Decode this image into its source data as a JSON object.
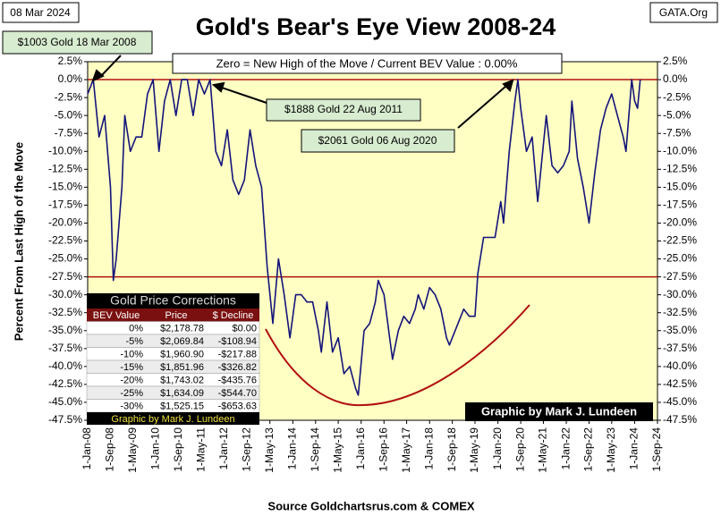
{
  "chart_data": {
    "type": "line",
    "title": "Gold's Bear's Eye View 2008-24",
    "date_label": "08 Mar 2024",
    "source_tag": "GATA.Org",
    "ylabel": "Percent  From Last High of the Move",
    "xlabel": "Source Goldchartsrus.com & COMEX",
    "credit": "Graphic by Mark J. Lundeen",
    "annotations": [
      "$1003 Gold 18 Mar 2008",
      "$1888 Gold 22 Aug 2011",
      "$2061 Gold 06 Aug 2020",
      "Zero = New High of the Move / Current  BEV Value : 0.00%"
    ],
    "reference_lines": [
      0,
      -27.5
    ],
    "reference_color": "#b01010",
    "background": "#ffffc4",
    "x": [
      "2008-01-01",
      "2008-03-01",
      "2008-05-01",
      "2008-07-01",
      "2008-09-01",
      "2008-10-01",
      "2008-11-01",
      "2009-01-01",
      "2009-02-01",
      "2009-04-01",
      "2009-06-01",
      "2009-08-01",
      "2009-10-01",
      "2009-12-01",
      "2010-02-01",
      "2010-04-01",
      "2010-06-01",
      "2010-08-01",
      "2010-10-01",
      "2010-12-01",
      "2011-02-01",
      "2011-04-01",
      "2011-06-01",
      "2011-08-01",
      "2011-10-01",
      "2011-12-01",
      "2012-02-01",
      "2012-04-01",
      "2012-06-01",
      "2012-08-01",
      "2012-10-01",
      "2012-12-01",
      "2013-02-01",
      "2013-04-01",
      "2013-06-01",
      "2013-08-01",
      "2013-10-01",
      "2013-12-01",
      "2014-02-01",
      "2014-04-01",
      "2014-06-01",
      "2014-08-01",
      "2014-10-01",
      "2014-11-01",
      "2015-01-01",
      "2015-03-01",
      "2015-05-01",
      "2015-07-01",
      "2015-09-01",
      "2015-11-01",
      "2015-12-01",
      "2016-02-01",
      "2016-04-01",
      "2016-06-01",
      "2016-07-01",
      "2016-09-01",
      "2016-11-01",
      "2016-12-01",
      "2017-02-01",
      "2017-04-01",
      "2017-06-01",
      "2017-08-01",
      "2017-09-01",
      "2017-11-01",
      "2018-01-01",
      "2018-03-01",
      "2018-05-01",
      "2018-07-01",
      "2018-08-01",
      "2018-10-01",
      "2019-01-01",
      "2019-03-01",
      "2019-05-01",
      "2019-06-01",
      "2019-08-01",
      "2019-10-01",
      "2019-12-01",
      "2020-02-01",
      "2020-03-01",
      "2020-05-01",
      "2020-07-01",
      "2020-08-01",
      "2020-09-01",
      "2020-11-01",
      "2021-01-01",
      "2021-03-01",
      "2021-05-01",
      "2021-06-01",
      "2021-08-01",
      "2021-10-01",
      "2021-12-01",
      "2022-02-01",
      "2022-03-01",
      "2022-05-01",
      "2022-07-01",
      "2022-09-01",
      "2022-11-01",
      "2023-01-01",
      "2023-03-01",
      "2023-05-01",
      "2023-07-01",
      "2023-09-01",
      "2023-10-01",
      "2023-12-01",
      "2024-01-01",
      "2024-02-01",
      "2024-03-01"
    ],
    "series": [
      {
        "name": "BEV",
        "color": "#14147a",
        "values": [
          -2,
          0,
          -8,
          -5,
          -15,
          -28,
          -25,
          -15,
          -5,
          -10,
          -8,
          -8,
          -2,
          0,
          -10,
          -3,
          0,
          -5,
          0,
          0,
          -5,
          0,
          -2,
          0,
          -10,
          -12,
          -7,
          -14,
          -16,
          -14,
          -7,
          -12,
          -15,
          -26,
          -34,
          -25,
          -30,
          -36,
          -30,
          -30,
          -31,
          -31,
          -35,
          -38,
          -31,
          -38,
          -36,
          -41,
          -40,
          -43,
          -44,
          -35,
          -34,
          -31,
          -28,
          -30,
          -36,
          -39,
          -35,
          -33,
          -34,
          -32,
          -30,
          -32,
          -29,
          -30,
          -32,
          -36,
          -37,
          -35,
          -32,
          -33,
          -33,
          -27,
          -22,
          -22,
          -22,
          -17,
          -20,
          -10,
          -3,
          0,
          -4,
          -10,
          -8,
          -17,
          -9,
          -5,
          -12,
          -13,
          -12,
          -10,
          -3,
          -11,
          -15,
          -20,
          -13,
          -7,
          -4,
          -2,
          -5,
          -8,
          -10,
          0,
          -3,
          -4,
          0
        ]
      }
    ],
    "xlim": [
      "2008-01-01",
      "2024-09-01"
    ],
    "xticks": [
      {
        "value": "2008-01-01",
        "label": "1-Jan-08"
      },
      {
        "value": "2008-09-01",
        "label": "1-Sep-08"
      },
      {
        "value": "2009-05-01",
        "label": "1-May-09"
      },
      {
        "value": "2010-01-01",
        "label": "1-Jan-10"
      },
      {
        "value": "2010-09-01",
        "label": "1-Sep-10"
      },
      {
        "value": "2011-05-01",
        "label": "1-May-11"
      },
      {
        "value": "2012-01-01",
        "label": "1-Jan-12"
      },
      {
        "value": "2012-09-01",
        "label": "1-Sep-12"
      },
      {
        "value": "2013-05-01",
        "label": "1-May-13"
      },
      {
        "value": "2014-01-01",
        "label": "1-Jan-14"
      },
      {
        "value": "2014-09-01",
        "label": "1-Sep-14"
      },
      {
        "value": "2015-05-01",
        "label": "1-May-15"
      },
      {
        "value": "2016-01-01",
        "label": "1-Jan-16"
      },
      {
        "value": "2016-09-01",
        "label": "1-Sep-16"
      },
      {
        "value": "2017-05-01",
        "label": "1-May-17"
      },
      {
        "value": "2018-01-01",
        "label": "1-Jan-18"
      },
      {
        "value": "2018-09-01",
        "label": "1-Sep-18"
      },
      {
        "value": "2019-05-01",
        "label": "1-May-19"
      },
      {
        "value": "2020-01-01",
        "label": "1-Jan-20"
      },
      {
        "value": "2020-09-01",
        "label": "1-Sep-20"
      },
      {
        "value": "2021-05-01",
        "label": "1-May-21"
      },
      {
        "value": "2022-01-01",
        "label": "1-Jan-22"
      },
      {
        "value": "2022-09-01",
        "label": "1-Sep-22"
      },
      {
        "value": "2023-05-01",
        "label": "1-May-23"
      },
      {
        "value": "2024-01-01",
        "label": "1-Jan-24"
      },
      {
        "value": "2024-09-01",
        "label": "1-Sep-24"
      }
    ],
    "ylim": [
      -47.5,
      2.5
    ],
    "yticks": [
      {
        "value": 2.5,
        "label": "2.5%"
      },
      {
        "value": 0,
        "label": "0.0%"
      },
      {
        "value": -2.5,
        "label": "-2.5%"
      },
      {
        "value": -5,
        "label": "-5.0%"
      },
      {
        "value": -7.5,
        "label": "-7.5%"
      },
      {
        "value": -10,
        "label": "-10.0%"
      },
      {
        "value": -12.5,
        "label": "-12.5%"
      },
      {
        "value": -15,
        "label": "-15.0%"
      },
      {
        "value": -17.5,
        "label": "-17.5%"
      },
      {
        "value": -20,
        "label": "-20.0%"
      },
      {
        "value": -22.5,
        "label": "-22.5%"
      },
      {
        "value": -25,
        "label": "-25.0%"
      },
      {
        "value": -27.5,
        "label": "-27.5%"
      },
      {
        "value": -30,
        "label": "-30.0%"
      },
      {
        "value": -32.5,
        "label": "-32.5%"
      },
      {
        "value": -35,
        "label": "-35.0%"
      },
      {
        "value": -37.5,
        "label": "-37.5%"
      },
      {
        "value": -40,
        "label": "-40.0%"
      },
      {
        "value": -42.5,
        "label": "-42.5%"
      },
      {
        "value": -45,
        "label": "-45.0%"
      },
      {
        "value": -47.5,
        "label": "-47.5%"
      }
    ],
    "inset_table": {
      "title": "Gold Price Corrections",
      "columns": [
        "BEV Value",
        "Price",
        "$ Decline"
      ],
      "rows": [
        [
          "0%",
          "$2,178.78",
          "$0.00"
        ],
        [
          "-5%",
          "$2,069.84",
          "-$108.94"
        ],
        [
          "-10%",
          "$1,960.90",
          "-$217.88"
        ],
        [
          "-15%",
          "$1,851.96",
          "-$326.82"
        ],
        [
          "-20%",
          "$1,743.02",
          "-$435.76"
        ],
        [
          "-25%",
          "$1,634.09",
          "-$544.70"
        ],
        [
          "-30%",
          "$1,525.15",
          "-$653.63"
        ]
      ],
      "footer": "Graphic by Mark J. Lundeen"
    }
  }
}
